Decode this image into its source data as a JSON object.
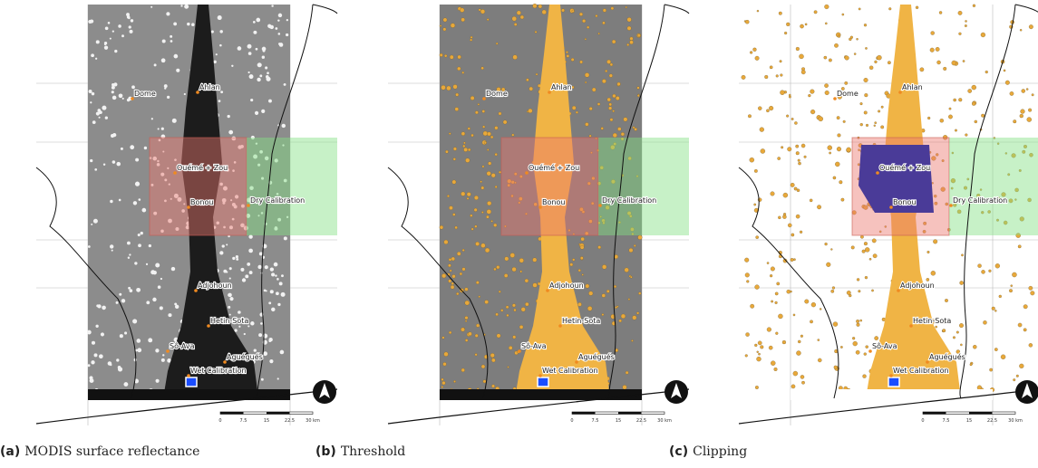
{
  "places": [
    "Dome",
    "Ahlan",
    "Ouémé + Zou",
    "Bonou",
    "Dry Calibration",
    "Adjohoun",
    "Hetin-Sota",
    "Sô-Ava",
    "Aguégués",
    "Wet Calibration"
  ],
  "scale_labels": [
    "0",
    "7.5",
    "15",
    "22.5",
    "30 km"
  ],
  "panels": [
    {
      "label": "(a)",
      "caption": "MODIS surface reflectance"
    },
    {
      "label": "(b)",
      "caption": "Threshold"
    },
    {
      "label": "(c)",
      "caption": "Clipping"
    }
  ]
}
